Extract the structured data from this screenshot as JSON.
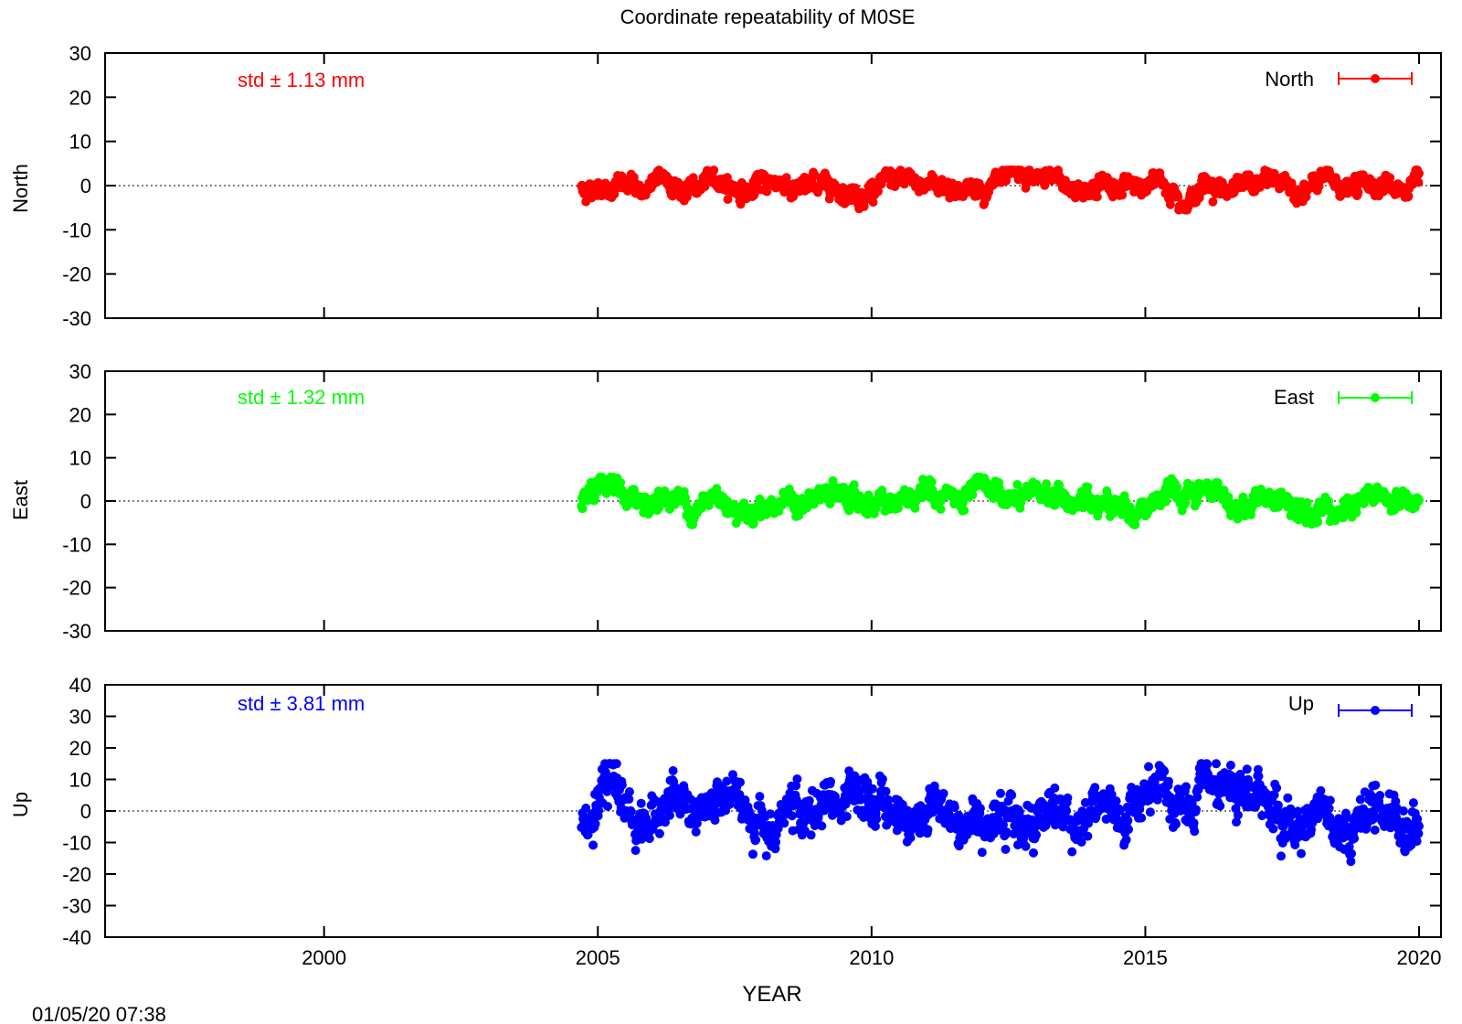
{
  "chart_data": {
    "type": "scatter",
    "title": "Coordinate repeatability of M0SE",
    "xlabel": "YEAR",
    "xlim": [
      1996,
      2020.4
    ],
    "xticks": [
      2000,
      2005,
      2010,
      2015,
      2020
    ],
    "x_tick_labels": [
      "2000",
      "2005",
      "2010",
      "2015",
      "2020"
    ],
    "data_start_year": 2004.7,
    "data_end_year": 2020.0,
    "timestamp": "01/05/20 07:38",
    "panels": [
      {
        "name": "North",
        "ylabel": "North",
        "ylim": [
          -30,
          30
        ],
        "yticks": [
          -30,
          -20,
          -10,
          0,
          10,
          20,
          30
        ],
        "y_tick_labels": [
          "-30",
          "-20",
          "-10",
          "0",
          "10",
          "20",
          "30"
        ],
        "legend": "North",
        "std_label": "std ± 1.13 mm",
        "color": "#ff0000",
        "noise_amplitude": 1.13,
        "min_value": -5.5,
        "max_value": 3.5
      },
      {
        "name": "East",
        "ylabel": "East",
        "ylim": [
          -30,
          30
        ],
        "yticks": [
          -30,
          -20,
          -10,
          0,
          10,
          20,
          30
        ],
        "y_tick_labels": [
          "-30",
          "-20",
          "-10",
          "0",
          "10",
          "20",
          "30"
        ],
        "legend": "East",
        "std_label": "std ± 1.32 mm",
        "color": "#00ff00",
        "noise_amplitude": 1.32,
        "min_value": -5.5,
        "max_value": 5.5
      },
      {
        "name": "Up",
        "ylabel": "Up",
        "ylim": [
          -40,
          40
        ],
        "yticks": [
          -40,
          -30,
          -20,
          -10,
          0,
          10,
          20,
          30,
          40
        ],
        "y_tick_labels": [
          "-40",
          "-30",
          "-20",
          "-10",
          "0",
          "10",
          "20",
          "30",
          "40"
        ],
        "legend": "Up",
        "std_label": "std ± 3.81 mm",
        "color": "#0000ff",
        "noise_amplitude": 3.81,
        "min_value": -16,
        "max_value": 15
      }
    ]
  }
}
